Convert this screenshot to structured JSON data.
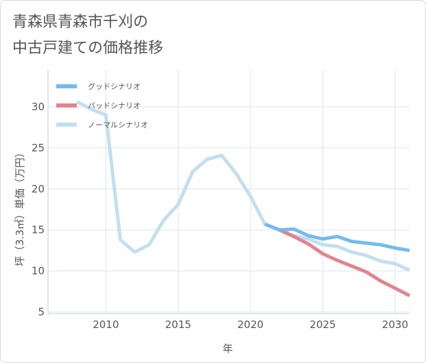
{
  "chart_data": {
    "type": "line",
    "title": [
      "青森県青森市千刈の",
      "中古戸建ての価格推移"
    ],
    "xlabel": "年",
    "ylabel": "坪（3.3㎡）単価（万円）",
    "xlim": [
      2006,
      2031
    ],
    "ylim": [
      4.8,
      34.5
    ],
    "xticks": [
      2010,
      2015,
      2020,
      2025,
      2030
    ],
    "yticks": [
      5,
      10,
      15,
      20,
      25,
      30
    ],
    "grid": true,
    "legend_position": "top-left",
    "series": [
      {
        "name": "グッドシナリオ",
        "color": "#72bcee",
        "x": [
          2021,
          2022,
          2023,
          2024,
          2025,
          2026,
          2027,
          2028,
          2029,
          2030,
          2031
        ],
        "y": [
          15.7,
          15.0,
          15.1,
          14.3,
          13.9,
          14.2,
          13.6,
          13.4,
          13.2,
          12.8,
          12.5
        ]
      },
      {
        "name": "バッドシナリオ",
        "color": "#e0848e",
        "x": [
          2021,
          2022,
          2023,
          2024,
          2025,
          2026,
          2027,
          2028,
          2029,
          2030,
          2031
        ],
        "y": [
          15.7,
          15.0,
          14.2,
          13.3,
          12.1,
          11.3,
          10.6,
          9.9,
          8.8,
          7.9,
          7.0
        ]
      },
      {
        "name": "ノーマルシナリオ",
        "color": "#c2dfee",
        "x": [
          2008,
          2009,
          2010,
          2011,
          2012,
          2013,
          2014,
          2015,
          2016,
          2017,
          2018,
          2019,
          2020,
          2021,
          2022,
          2023,
          2024,
          2025,
          2026,
          2027,
          2028,
          2029,
          2030,
          2031
        ],
        "y": [
          30.6,
          29.7,
          29.0,
          13.8,
          12.3,
          13.2,
          16.2,
          18.1,
          22.1,
          23.6,
          24.1,
          21.9,
          19.1,
          15.7,
          15.0,
          14.3,
          13.9,
          13.2,
          13.0,
          12.3,
          11.9,
          11.2,
          10.9,
          10.1
        ]
      }
    ]
  }
}
